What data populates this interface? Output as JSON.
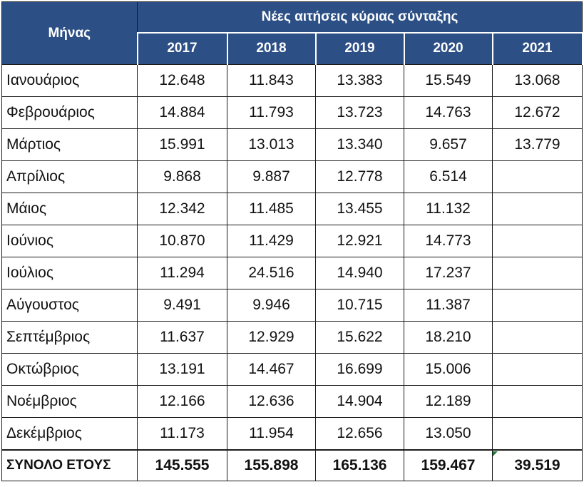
{
  "table": {
    "month_header": "Μήνας",
    "group_header": "Νέες αιτήσεις κύριας σύνταξης",
    "years": [
      "2017",
      "2018",
      "2019",
      "2020",
      "2021"
    ],
    "rows": [
      {
        "month": "Ιανουάριος",
        "values": [
          "12.648",
          "11.843",
          "13.383",
          "15.549",
          "13.068"
        ]
      },
      {
        "month": "Φεβρουάριος",
        "values": [
          "14.884",
          "11.793",
          "13.723",
          "14.763",
          "12.672"
        ]
      },
      {
        "month": "Μάρτιος",
        "values": [
          "15.991",
          "13.013",
          "13.340",
          "9.657",
          "13.779"
        ]
      },
      {
        "month": "Απρίλιος",
        "values": [
          "9.868",
          "9.887",
          "12.778",
          "6.514",
          ""
        ]
      },
      {
        "month": "Μάιος",
        "values": [
          "12.342",
          "11.485",
          "13.455",
          "11.132",
          ""
        ]
      },
      {
        "month": "Ιούνιος",
        "values": [
          "10.870",
          "11.429",
          "12.921",
          "14.773",
          ""
        ]
      },
      {
        "month": "Ιούλιος",
        "values": [
          "11.294",
          "24.516",
          "14.940",
          "17.237",
          ""
        ]
      },
      {
        "month": "Αύγουστος",
        "values": [
          "9.491",
          "9.946",
          "10.715",
          "11.387",
          ""
        ]
      },
      {
        "month": "Σεπτέμβριος",
        "values": [
          "11.637",
          "12.929",
          "15.622",
          "18.210",
          ""
        ]
      },
      {
        "month": "Οκτώβριος",
        "values": [
          "13.191",
          "14.467",
          "16.699",
          "15.006",
          ""
        ]
      },
      {
        "month": "Νοέμβριος",
        "values": [
          "12.166",
          "12.636",
          "14.904",
          "12.189",
          ""
        ]
      },
      {
        "month": "Δεκέμβριος",
        "values": [
          "11.173",
          "11.954",
          "12.656",
          "13.050",
          ""
        ]
      }
    ],
    "total": {
      "label": "ΣΥΝΟΛΟ ΕΤΟΥΣ",
      "values": [
        "145.555",
        "155.898",
        "165.136",
        "159.467",
        "39.519"
      ]
    }
  },
  "colors": {
    "header_bg": "#2c4f85",
    "header_text": "#ffffff",
    "cell_marker": "#1f7a3a"
  }
}
